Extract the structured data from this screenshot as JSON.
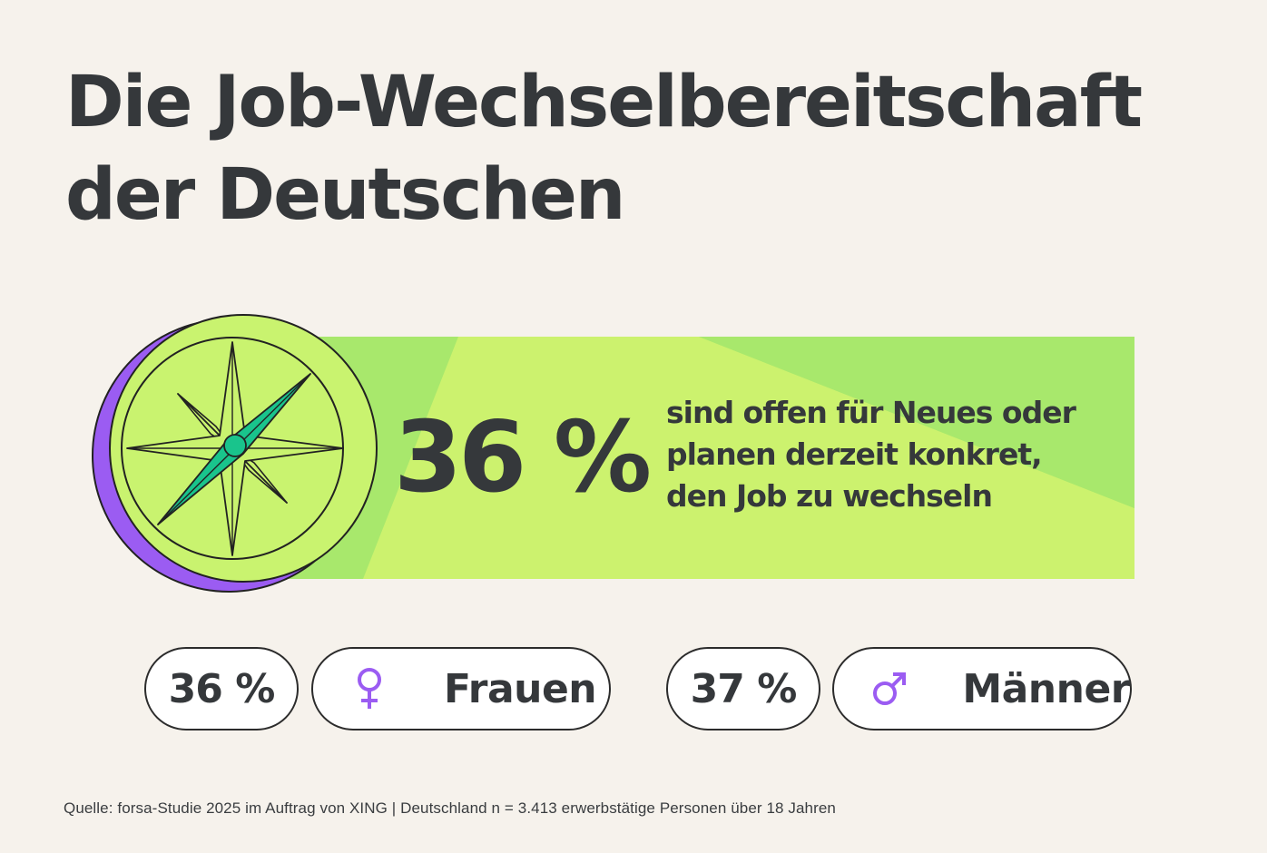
{
  "title": {
    "line1": "Die Job-Wechselbereitschaft",
    "line2": "der Deutschen"
  },
  "headline_stat": {
    "value": "36 %",
    "text_lines": [
      "sind offen für Neues oder",
      "planen derzeit konkret,",
      "den Job zu wechseln"
    ]
  },
  "breakdown": {
    "women": {
      "value": "36 %",
      "label": "Frauen",
      "icon": "female-symbol-icon"
    },
    "men": {
      "value": "37 %",
      "label": "Männer",
      "icon": "male-symbol-icon"
    }
  },
  "source": "Quelle: forsa-Studie 2025 im Auftrag von XING | Deutschland n = 3.413 erwerbstätige Personen über 18 Jahren",
  "colors": {
    "background": "#f6f2ec",
    "banner_green": "#a8e86c",
    "banner_light_green": "#ccf26e",
    "compass_face": "#c9f36f",
    "compass_shadow": "#9b5cf2",
    "needle": "#19c48c",
    "symbol_purple": "#9b5cf2",
    "text_dark": "#35383b"
  }
}
